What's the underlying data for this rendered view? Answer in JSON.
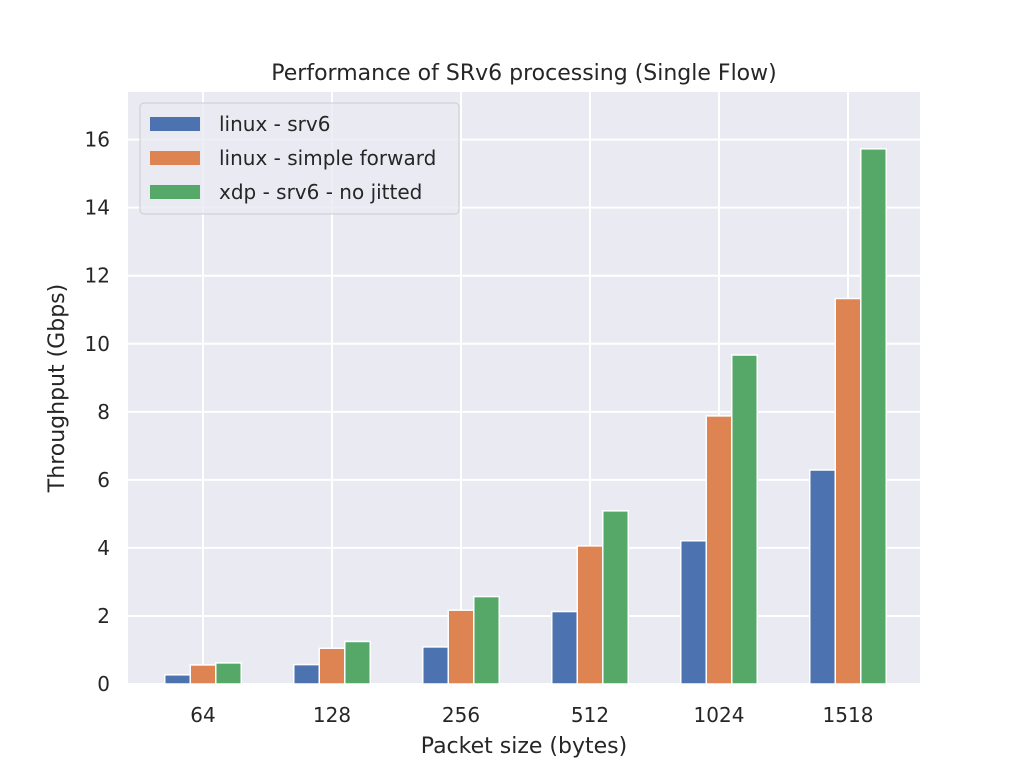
{
  "chart_data": {
    "type": "bar",
    "title": "Performance of SRv6 processing (Single Flow)",
    "xlabel": "Packet size (bytes)",
    "ylabel": "Throughput (Gbps)",
    "categories": [
      "64",
      "128",
      "256",
      "512",
      "1024",
      "1518"
    ],
    "ylim": [
      0,
      17.4
    ],
    "yticks": [
      0,
      2,
      4,
      6,
      8,
      10,
      12,
      14,
      16
    ],
    "grid": true,
    "legend_position": "top-left",
    "series": [
      {
        "name": "linux - srv6",
        "color": "#4c72b0",
        "values": [
          0.27,
          0.57,
          1.09,
          2.13,
          4.21,
          6.29
        ]
      },
      {
        "name": "linux - simple forward",
        "color": "#dd8452",
        "values": [
          0.56,
          1.05,
          2.17,
          4.06,
          7.88,
          11.33
        ]
      },
      {
        "name": "xdp - srv6 - no jitted",
        "color": "#55a868",
        "values": [
          0.62,
          1.25,
          2.57,
          5.09,
          9.67,
          15.73
        ]
      }
    ]
  }
}
